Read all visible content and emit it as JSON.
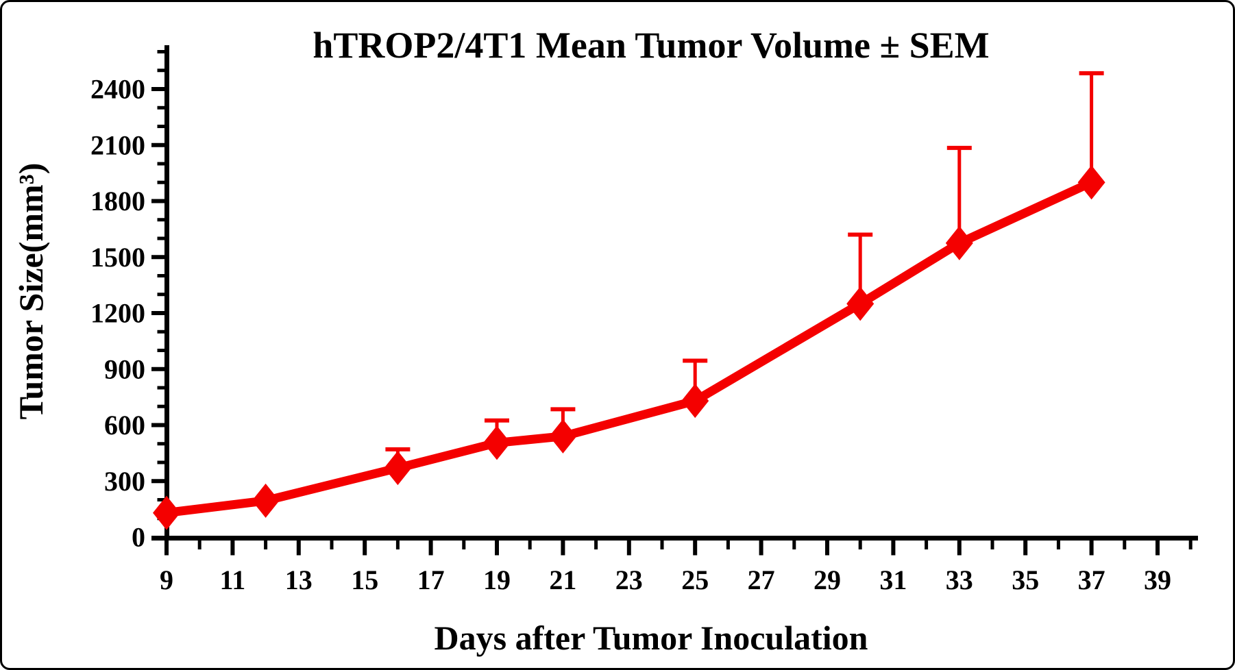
{
  "chart_data": {
    "type": "line",
    "title": "hTROP2/4T1 Mean Tumor Volume ± SEM",
    "xlabel": "Days after Tumor Inoculation",
    "ylabel": "Tumor Size(mm³)",
    "x": [
      9,
      12,
      16,
      19,
      21,
      25,
      30,
      33,
      37
    ],
    "series": [
      {
        "name": "hTROP2/4T1 mean tumor volume",
        "values": [
          130,
          195,
          370,
          505,
          540,
          730,
          1250,
          1575,
          1900
        ],
        "sem_upper": [
          0,
          0,
          100,
          120,
          145,
          215,
          370,
          510,
          585
        ],
        "color": "#f40000",
        "marker": "diamond"
      }
    ],
    "error_bars": "upper SEM only",
    "x_major_ticks": [
      9,
      11,
      13,
      15,
      17,
      19,
      21,
      23,
      25,
      27,
      29,
      31,
      33,
      35,
      37,
      39
    ],
    "x_tick_labels": [
      "9",
      "11",
      "13",
      "15",
      "17",
      "19",
      "21",
      "23",
      "25",
      "27",
      "29",
      "31",
      "33",
      "35",
      "37",
      "39"
    ],
    "x_minor_ticks": [
      10,
      12,
      14,
      16,
      18,
      20,
      22,
      24,
      26,
      28,
      30,
      32,
      34,
      36,
      38,
      40
    ],
    "y_major_ticks": [
      0,
      300,
      600,
      900,
      1200,
      1500,
      1800,
      2100,
      2400
    ],
    "y_tick_labels": [
      "0",
      "300",
      "600",
      "900",
      "1200",
      "1500",
      "1800",
      "2100",
      "2400"
    ],
    "y_minor_ticks": [
      100,
      200,
      400,
      500,
      700,
      800,
      1000,
      1100,
      1300,
      1400,
      1600,
      1700,
      1900,
      2000,
      2200,
      2300,
      2500,
      2600
    ],
    "xlim": [
      9,
      40.5
    ],
    "ylim": [
      0,
      2600
    ],
    "grid": false,
    "legend": false,
    "axis_color": "#000000",
    "background": "#ffffff"
  }
}
